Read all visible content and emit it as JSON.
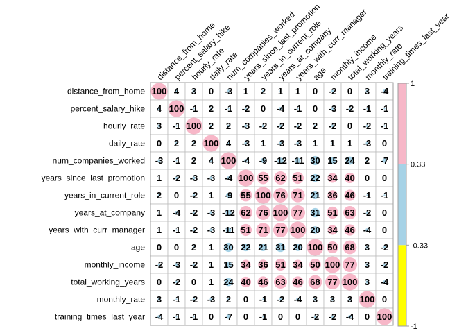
{
  "chart_data": {
    "type": "heatmap",
    "title": "",
    "variables": [
      "distance_from_home",
      "percent_salary_hike",
      "hourly_rate",
      "daily_rate",
      "num_companies_worked",
      "years_since_last_promotion",
      "years_in_current_role",
      "years_at_company",
      "years_with_curr_manager",
      "age",
      "monthly_income",
      "total_working_years",
      "monthly_rate",
      "training_times_last_year"
    ],
    "matrix": [
      [
        100,
        4,
        3,
        0,
        -3,
        1,
        2,
        1,
        1,
        0,
        -2,
        0,
        3,
        -4
      ],
      [
        4,
        100,
        -1,
        2,
        -1,
        -2,
        0,
        -4,
        -1,
        0,
        -3,
        -2,
        -1,
        -1
      ],
      [
        3,
        -1,
        100,
        2,
        2,
        -3,
        -2,
        -2,
        -2,
        2,
        -2,
        0,
        -2,
        -1
      ],
      [
        0,
        2,
        2,
        100,
        4,
        -3,
        1,
        -3,
        -3,
        1,
        1,
        1,
        -3,
        0
      ],
      [
        -3,
        -1,
        2,
        4,
        100,
        -4,
        -9,
        -12,
        -11,
        30,
        15,
        24,
        2,
        -7
      ],
      [
        1,
        -2,
        -3,
        -3,
        -4,
        100,
        55,
        62,
        51,
        22,
        34,
        40,
        0,
        0
      ],
      [
        2,
        0,
        -2,
        1,
        -9,
        55,
        100,
        76,
        71,
        21,
        36,
        46,
        -1,
        -1
      ],
      [
        1,
        -4,
        -2,
        -3,
        -12,
        62,
        76,
        100,
        77,
        31,
        51,
        63,
        -2,
        0
      ],
      [
        1,
        -1,
        -2,
        -3,
        -11,
        51,
        71,
        77,
        100,
        20,
        34,
        46,
        -4,
        0
      ],
      [
        0,
        0,
        2,
        1,
        30,
        22,
        21,
        31,
        20,
        100,
        50,
        68,
        3,
        -2
      ],
      [
        -2,
        -3,
        -2,
        1,
        15,
        34,
        36,
        51,
        34,
        50,
        100,
        77,
        3,
        -2
      ],
      [
        0,
        -2,
        0,
        1,
        24,
        40,
        46,
        63,
        46,
        68,
        77,
        100,
        3,
        -4
      ],
      [
        3,
        -1,
        -2,
        -3,
        2,
        0,
        -1,
        -2,
        -4,
        3,
        3,
        3,
        100,
        0
      ],
      [
        -4,
        -1,
        -1,
        0,
        -7,
        0,
        -1,
        0,
        0,
        -2,
        -2,
        -4,
        0,
        100
      ]
    ],
    "color_bins": [
      {
        "min": -1,
        "max": -0.33,
        "color": "#ffff00"
      },
      {
        "min": -0.33,
        "max": 0.33,
        "color": "#a6d2e6"
      },
      {
        "min": 0.33,
        "max": 1,
        "color": "#f7b7c8"
      }
    ],
    "legend": {
      "position": "right",
      "tick_labels": [
        "1",
        "0.33",
        "-0.33",
        "-1"
      ]
    },
    "grid": true
  }
}
